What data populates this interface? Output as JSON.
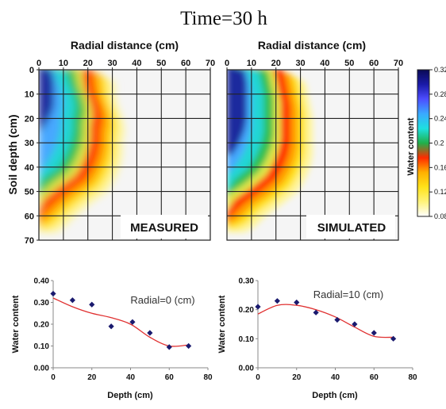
{
  "figure": {
    "title": "Time=30 h"
  },
  "colors": {
    "colormap": [
      "#ffffff",
      "#fff37a",
      "#ffe21a",
      "#ffb000",
      "#ff2b00",
      "#1fb04a",
      "#1ee0e0",
      "#3aa9ff",
      "#4d4dff",
      "#1a1aa8",
      "#0a0a55"
    ],
    "grid": "#222222",
    "marker": "#1a1a6e",
    "fit_line": "#e03030"
  },
  "chart_data": [
    {
      "type": "heatmap",
      "label": "MEASURED",
      "xlabel": "Radial distance (cm)",
      "ylabel": "Soil depth (cm)",
      "xlim": [
        0,
        70
      ],
      "ylim": [
        0,
        70
      ],
      "xticks": [
        "0",
        "10",
        "20",
        "30",
        "40",
        "50",
        "60",
        "70"
      ],
      "yticks": [
        "0",
        "10",
        "20",
        "30",
        "40",
        "50",
        "60",
        "70"
      ],
      "grid": true,
      "front": [
        [
          0,
          25
        ],
        [
          5,
          25
        ],
        [
          10,
          26
        ],
        [
          15,
          28
        ],
        [
          20,
          29
        ],
        [
          25,
          28
        ],
        [
          30,
          28
        ],
        [
          35,
          27
        ],
        [
          40,
          25
        ],
        [
          45,
          22
        ],
        [
          50,
          15
        ],
        [
          55,
          9
        ],
        [
          60,
          4
        ],
        [
          62,
          1
        ]
      ],
      "core": [
        [
          0,
          5
        ],
        [
          5,
          6
        ],
        [
          10,
          6
        ],
        [
          15,
          6
        ],
        [
          20,
          4
        ],
        [
          25,
          1
        ]
      ]
    },
    {
      "type": "heatmap",
      "label": "SIMULATED",
      "xlabel": "Radial distance (cm)",
      "xlim": [
        0,
        70
      ],
      "ylim": [
        0,
        70
      ],
      "xticks": [
        "0",
        "10",
        "20",
        "30",
        "40",
        "50",
        "60",
        "70"
      ],
      "grid": true,
      "front": [
        [
          0,
          26
        ],
        [
          5,
          27
        ],
        [
          10,
          28
        ],
        [
          15,
          29
        ],
        [
          20,
          29
        ],
        [
          25,
          29
        ],
        [
          30,
          29
        ],
        [
          35,
          28
        ],
        [
          40,
          26
        ],
        [
          45,
          23
        ],
        [
          50,
          17
        ],
        [
          55,
          10
        ],
        [
          60,
          5
        ],
        [
          62,
          1
        ]
      ],
      "core": [
        [
          0,
          7
        ],
        [
          5,
          8
        ],
        [
          10,
          8
        ],
        [
          15,
          8
        ],
        [
          20,
          8
        ],
        [
          25,
          7
        ],
        [
          30,
          5
        ],
        [
          35,
          2
        ]
      ]
    },
    {
      "type": "colorbar",
      "label": "Water content",
      "ticks": [
        "0.32",
        "0.28",
        "0.24",
        "0.2",
        "0.16",
        "0.12",
        "0.08"
      ]
    },
    {
      "type": "scatter",
      "annotation": "Radial=0 (cm)",
      "xlabel": "Depth (cm)",
      "ylabel": "Water content",
      "xlim": [
        0,
        80
      ],
      "ylim": [
        0,
        0.4
      ],
      "xticks": [
        "0",
        "20",
        "40",
        "60",
        "80"
      ],
      "yticks": [
        "0.00",
        "0.10",
        "0.20",
        "0.30",
        "0.40"
      ],
      "points": [
        [
          0,
          0.34
        ],
        [
          10,
          0.31
        ],
        [
          20,
          0.29
        ],
        [
          30,
          0.19
        ],
        [
          41,
          0.21
        ],
        [
          50,
          0.16
        ],
        [
          60,
          0.095
        ],
        [
          70,
          0.1
        ]
      ],
      "curve": [
        [
          0,
          0.32
        ],
        [
          10,
          0.28
        ],
        [
          20,
          0.25
        ],
        [
          30,
          0.23
        ],
        [
          40,
          0.2
        ],
        [
          50,
          0.14
        ],
        [
          60,
          0.1
        ],
        [
          70,
          0.105
        ]
      ]
    },
    {
      "type": "scatter",
      "annotation": "Radial=10 (cm)",
      "xlabel": "Depth (cm)",
      "ylabel": "Water content",
      "xlim": [
        0,
        80
      ],
      "ylim": [
        0,
        0.3
      ],
      "xticks": [
        "0",
        "20",
        "40",
        "60",
        "80"
      ],
      "yticks": [
        "0.00",
        "0.10",
        "0.20",
        "0.30"
      ],
      "points": [
        [
          0,
          0.21
        ],
        [
          10,
          0.23
        ],
        [
          20,
          0.225
        ],
        [
          30,
          0.19
        ],
        [
          41,
          0.165
        ],
        [
          50,
          0.15
        ],
        [
          60,
          0.12
        ],
        [
          70,
          0.1
        ]
      ],
      "curve": [
        [
          0,
          0.185
        ],
        [
          10,
          0.215
        ],
        [
          20,
          0.215
        ],
        [
          30,
          0.2
        ],
        [
          40,
          0.175
        ],
        [
          50,
          0.14
        ],
        [
          60,
          0.108
        ],
        [
          70,
          0.105
        ]
      ]
    }
  ]
}
